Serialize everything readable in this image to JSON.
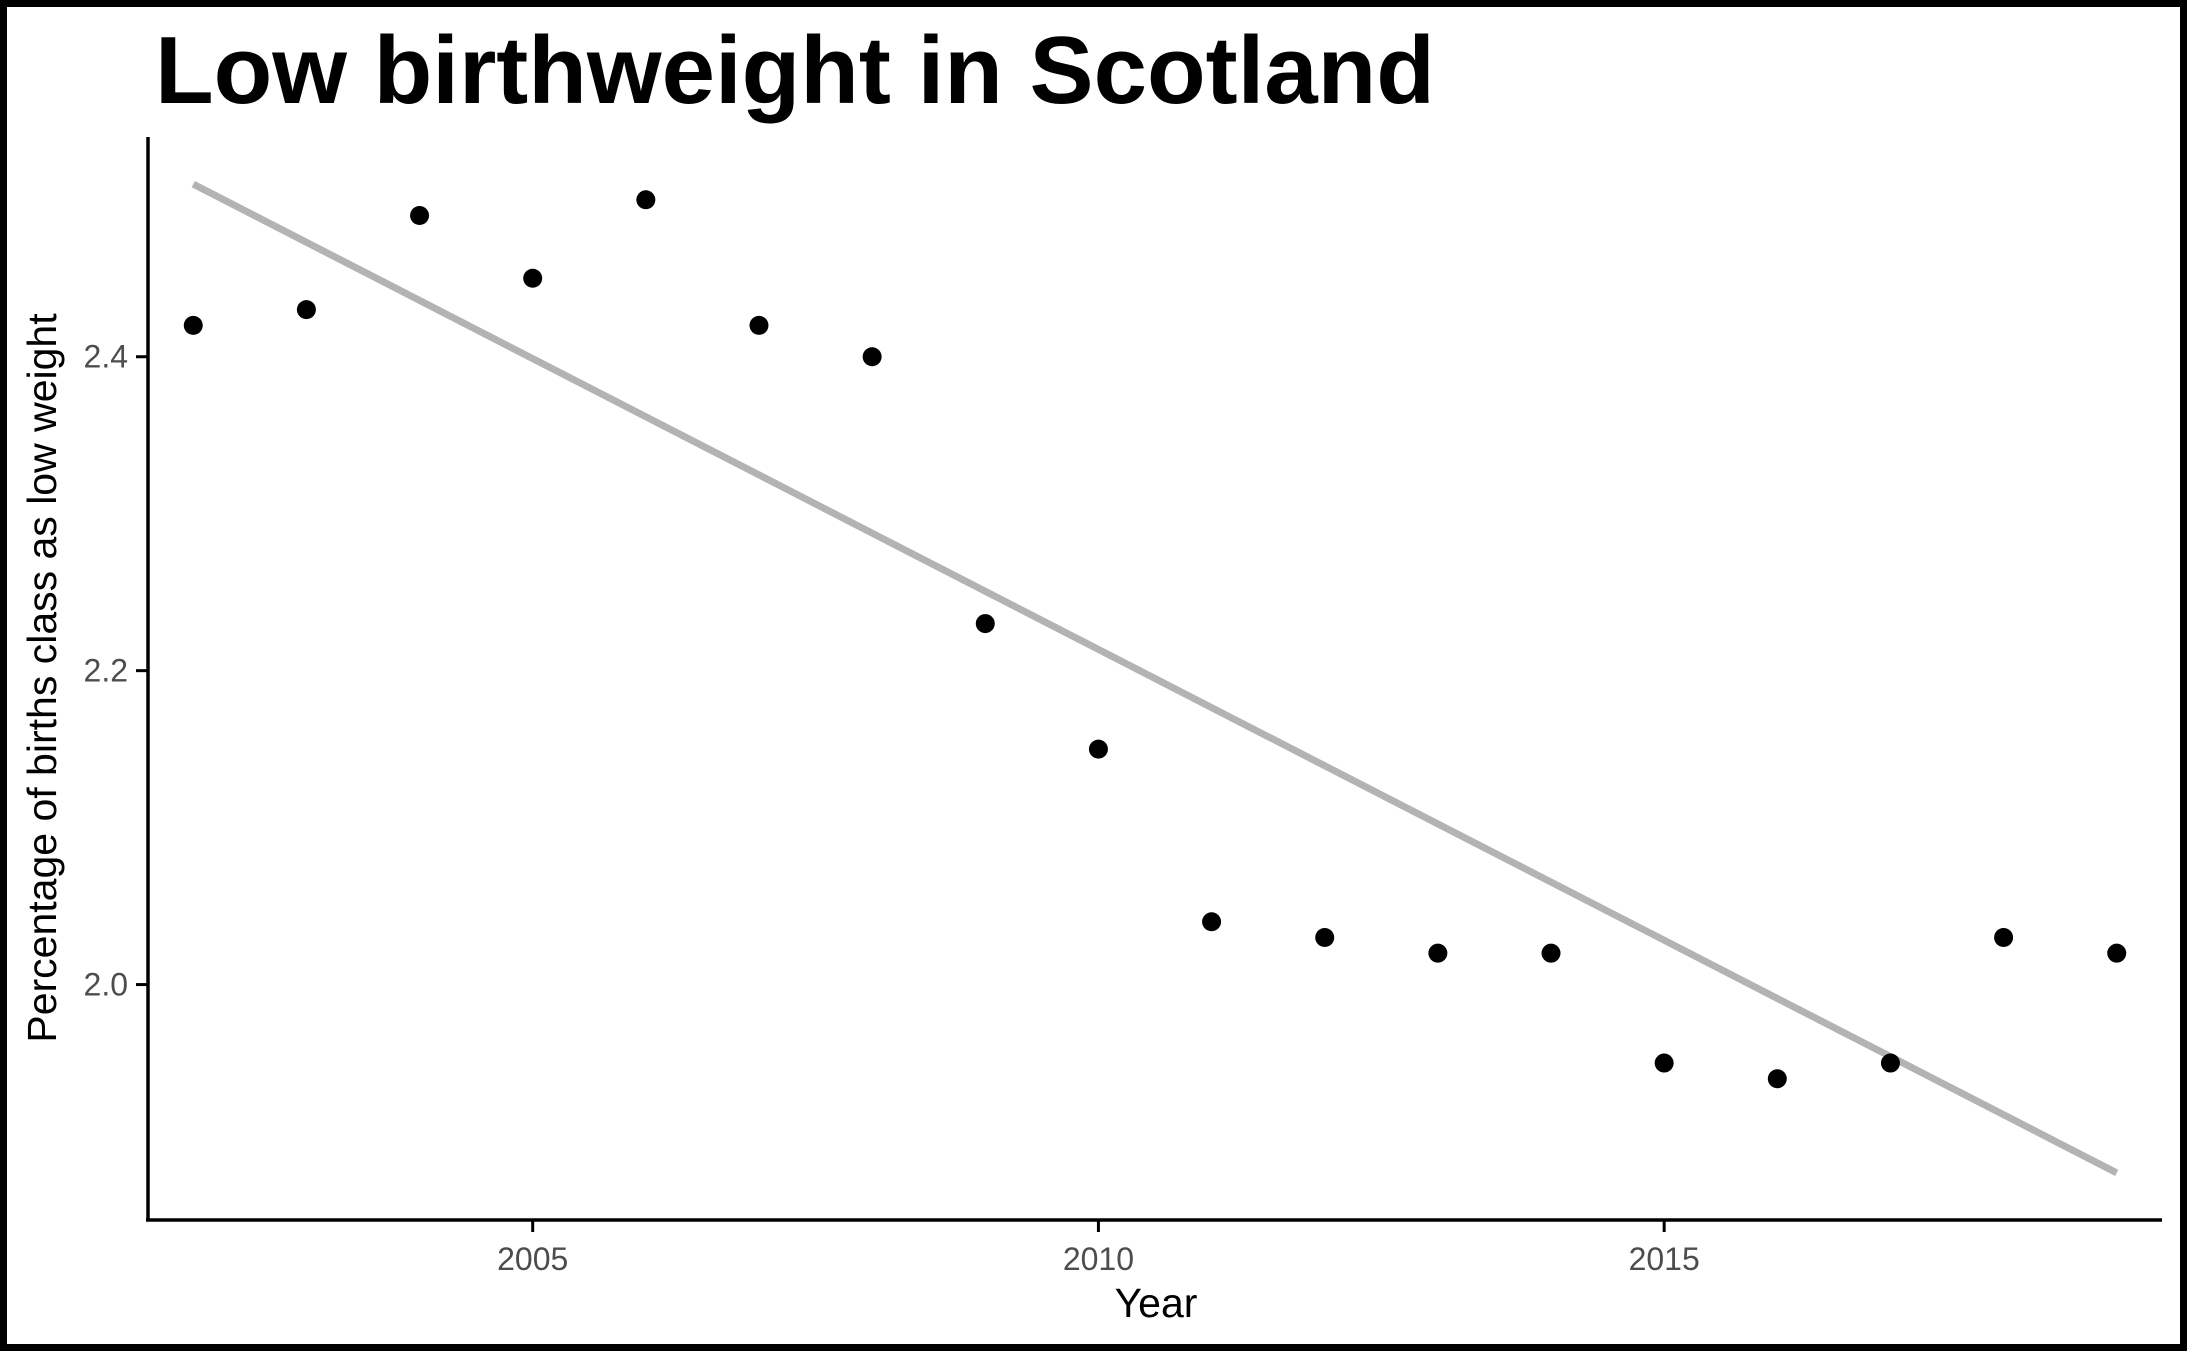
{
  "chart_data": {
    "type": "scatter",
    "title": "Low birthweight in Scotland",
    "xlabel": "Year",
    "ylabel": "Percentage of births class as low weight",
    "xlim": [
      2001.6,
      2019.4
    ],
    "ylim": [
      1.85,
      2.54
    ],
    "x_ticks": [
      2005,
      2010,
      2015
    ],
    "x_tick_labels": [
      "2005",
      "2010",
      "2015"
    ],
    "y_ticks": [
      2.0,
      2.2,
      2.4
    ],
    "y_tick_labels": [
      "2.0",
      "2.2",
      "2.4"
    ],
    "grid": false,
    "series": [
      {
        "x": [
          2002,
          2003,
          2004,
          2005,
          2006,
          2007,
          2008,
          2009,
          2010,
          2011,
          2012,
          2013,
          2014,
          2015,
          2016,
          2017,
          2018,
          2019
        ],
        "y": [
          2.42,
          2.43,
          2.49,
          2.45,
          2.5,
          2.42,
          2.4,
          2.23,
          2.15,
          2.04,
          2.03,
          2.02,
          2.02,
          1.95,
          1.94,
          1.95,
          2.03,
          2.02
        ],
        "color": "#000000"
      }
    ],
    "trend_line": {
      "x": [
        2002,
        2019
      ],
      "y": [
        2.51,
        1.88
      ],
      "color": "#b3b3b3"
    }
  }
}
